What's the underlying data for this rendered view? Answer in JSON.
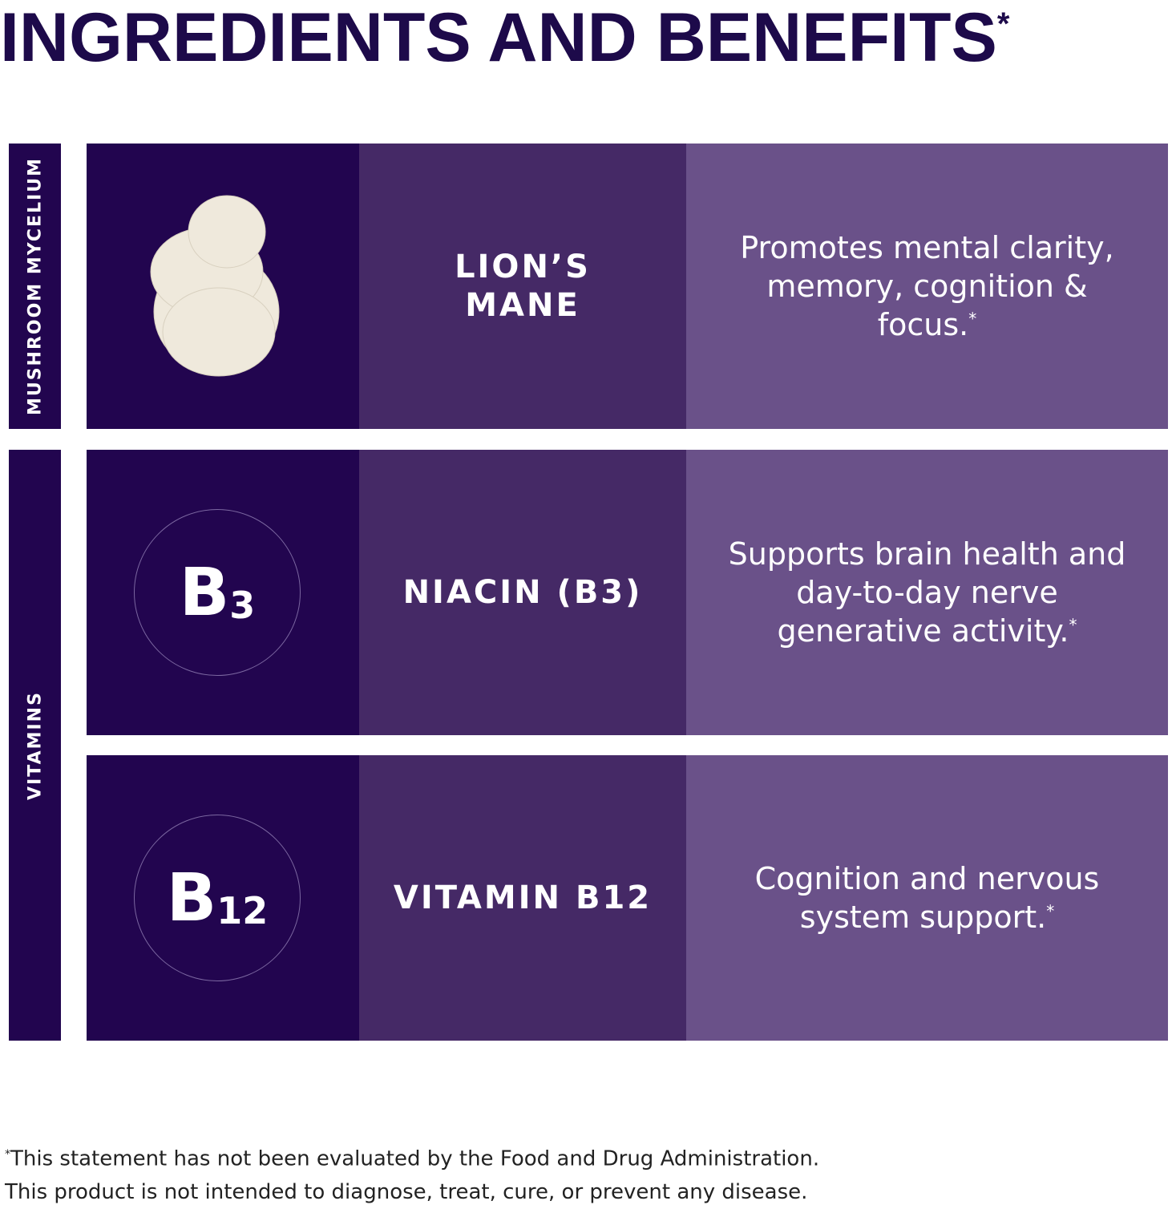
{
  "title": "INGREDIENTS AND BENEFITS",
  "title_mark": "*",
  "colors": {
    "dark": "#22054f",
    "mid": "#452966",
    "light": "#6a5189",
    "title": "#1d0a4a"
  },
  "categories": [
    "MUSHROOM MYCELIUM",
    "VITAMINS"
  ],
  "rows": [
    {
      "icon": "lions-mane-mushroom",
      "name_line1": "LION’S",
      "name_line2": "MANE",
      "benefit": "Promotes mental clarity, memory, cognition & focus.",
      "mark": "*"
    },
    {
      "icon_main": "B",
      "icon_sub": "3",
      "name": "NIACIN (B3)",
      "benefit": "Supports brain health and day-to-day nerve generative activity.",
      "mark": "*"
    },
    {
      "icon_main": "B",
      "icon_sub": "12",
      "name": "VITAMIN B12",
      "benefit": "Cognition and nervous system support.",
      "mark": "*"
    }
  ],
  "footer": {
    "mark": "*",
    "line1": "This statement has not been evaluated by the Food and Drug Administration.",
    "line2": "This product is not intended to diagnose, treat, cure, or prevent any disease."
  }
}
